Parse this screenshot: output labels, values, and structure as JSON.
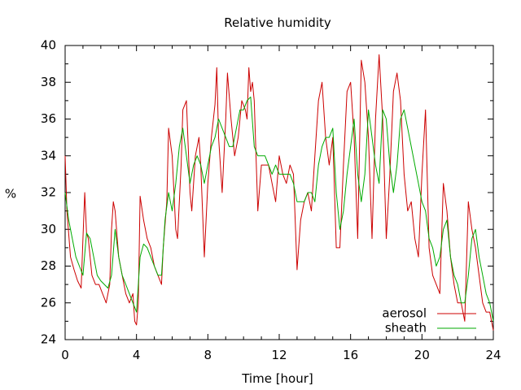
{
  "chart_data": {
    "type": "line",
    "title": "Relative humidity",
    "xlabel": "Time [hour]",
    "ylabel": "%",
    "xlim": [
      0,
      24
    ],
    "ylim": [
      24,
      40
    ],
    "x_ticks": [
      0,
      4,
      8,
      12,
      16,
      20,
      24
    ],
    "y_ticks": [
      24,
      26,
      28,
      30,
      32,
      34,
      36,
      38,
      40
    ],
    "grid": false,
    "legend_position": "bottom-right",
    "series": [
      {
        "name": "aerosol",
        "color": "#cc0000",
        "x": [
          0,
          0.1,
          0.3,
          0.5,
          0.7,
          0.9,
          1.0,
          1.1,
          1.2,
          1.3,
          1.5,
          1.7,
          1.9,
          2.1,
          2.3,
          2.5,
          2.6,
          2.7,
          2.8,
          3.0,
          3.2,
          3.4,
          3.6,
          3.8,
          3.9,
          4.0,
          4.1,
          4.2,
          4.4,
          4.6,
          4.8,
          5.0,
          5.2,
          5.4,
          5.5,
          5.7,
          5.8,
          6.0,
          6.2,
          6.3,
          6.5,
          6.6,
          6.8,
          7.0,
          7.1,
          7.3,
          7.5,
          7.6,
          7.8,
          8.0,
          8.2,
          8.4,
          8.5,
          8.6,
          8.8,
          9.0,
          9.1,
          9.3,
          9.5,
          9.7,
          9.9,
          10.1,
          10.2,
          10.3,
          10.4,
          10.5,
          10.6,
          10.8,
          11.0,
          11.2,
          11.4,
          11.6,
          11.8,
          12.0,
          12.2,
          12.4,
          12.6,
          12.8,
          13.0,
          13.2,
          13.4,
          13.6,
          13.8,
          14.0,
          14.2,
          14.4,
          14.6,
          14.8,
          15.0,
          15.2,
          15.4,
          15.6,
          15.8,
          16.0,
          16.2,
          16.4,
          16.6,
          16.8,
          17.0,
          17.2,
          17.4,
          17.6,
          17.8,
          18.0,
          18.2,
          18.4,
          18.6,
          18.8,
          19.0,
          19.2,
          19.4,
          19.6,
          19.8,
          20.0,
          20.2,
          20.4,
          20.6,
          20.8,
          21.0,
          21.2,
          21.4,
          21.6,
          21.8,
          22.0,
          22.2,
          22.4,
          22.6,
          22.8,
          23.0,
          23.2,
          23.4,
          23.6,
          23.8,
          24.0
        ],
        "values": [
          34.0,
          31.0,
          28.5,
          27.8,
          27.2,
          26.8,
          29.5,
          32.0,
          29.8,
          29.5,
          27.5,
          27.0,
          27.0,
          26.5,
          26.0,
          27.0,
          30.0,
          31.5,
          31.0,
          28.5,
          27.5,
          26.5,
          26.0,
          26.5,
          25.0,
          24.8,
          26.0,
          31.8,
          30.5,
          29.5,
          29.0,
          28.0,
          27.5,
          27.0,
          29.0,
          31.5,
          35.5,
          34.0,
          30.0,
          29.5,
          33.5,
          36.5,
          37.0,
          32.0,
          31.0,
          34.0,
          35.0,
          33.5,
          28.5,
          32.5,
          35.0,
          36.8,
          38.8,
          35.0,
          32.0,
          36.0,
          38.5,
          36.0,
          34.0,
          35.0,
          37.0,
          36.5,
          36.0,
          38.8,
          37.5,
          38.0,
          37.0,
          31.0,
          33.5,
          33.5,
          33.5,
          32.5,
          31.5,
          34.0,
          33.0,
          32.5,
          33.5,
          33.0,
          27.8,
          30.5,
          31.5,
          32.0,
          31.0,
          34.0,
          37.0,
          38.0,
          35.0,
          33.5,
          35.0,
          29.0,
          29.0,
          33.5,
          37.5,
          38.0,
          35.0,
          29.5,
          39.2,
          38.0,
          35.0,
          29.5,
          36.0,
          39.5,
          36.0,
          29.5,
          33.0,
          37.5,
          38.5,
          37.0,
          33.0,
          31.0,
          31.5,
          29.5,
          28.5,
          33.0,
          36.5,
          29.0,
          27.5,
          27.0,
          26.5,
          32.5,
          31.0,
          28.5,
          27.0,
          26.0,
          26.0,
          25.0,
          31.5,
          30.0,
          29.0,
          27.5,
          26.0,
          25.5,
          25.5,
          24.5
        ]
      },
      {
        "name": "sheath",
        "color": "#00aa00",
        "x": [
          0,
          0.2,
          0.4,
          0.6,
          0.8,
          1.0,
          1.2,
          1.4,
          1.6,
          1.8,
          2.0,
          2.2,
          2.4,
          2.6,
          2.8,
          3.0,
          3.2,
          3.4,
          3.6,
          3.8,
          4.0,
          4.2,
          4.4,
          4.6,
          4.8,
          5.0,
          5.2,
          5.4,
          5.6,
          5.8,
          6.0,
          6.2,
          6.4,
          6.6,
          6.8,
          7.0,
          7.2,
          7.4,
          7.6,
          7.8,
          8.0,
          8.2,
          8.4,
          8.6,
          8.8,
          9.0,
          9.2,
          9.4,
          9.6,
          9.8,
          10.0,
          10.2,
          10.4,
          10.6,
          10.8,
          11.0,
          11.2,
          11.4,
          11.6,
          11.8,
          12.0,
          12.2,
          12.4,
          12.6,
          12.8,
          13.0,
          13.2,
          13.4,
          13.6,
          13.8,
          14.0,
          14.2,
          14.4,
          14.6,
          14.8,
          15.0,
          15.2,
          15.4,
          15.6,
          15.8,
          16.0,
          16.2,
          16.4,
          16.6,
          16.8,
          17.0,
          17.2,
          17.4,
          17.6,
          17.8,
          18.0,
          18.2,
          18.4,
          18.6,
          18.8,
          19.0,
          19.2,
          19.4,
          19.6,
          19.8,
          20.0,
          20.2,
          20.4,
          20.6,
          20.8,
          21.0,
          21.2,
          21.4,
          21.6,
          21.8,
          22.0,
          22.2,
          22.4,
          22.6,
          22.8,
          23.0,
          23.2,
          23.4,
          23.6,
          23.8,
          24.0
        ],
        "values": [
          32.0,
          30.5,
          29.5,
          28.5,
          28.0,
          27.5,
          29.8,
          29.5,
          28.5,
          27.5,
          27.2,
          27.0,
          26.8,
          27.5,
          30.0,
          28.5,
          27.5,
          27.0,
          26.5,
          26.0,
          25.5,
          28.5,
          29.2,
          29.0,
          28.5,
          28.0,
          27.5,
          27.5,
          30.5,
          32.0,
          31.0,
          32.5,
          34.5,
          35.5,
          34.0,
          32.5,
          33.5,
          34.0,
          33.5,
          32.5,
          33.5,
          34.5,
          35.0,
          36.0,
          35.5,
          35.0,
          34.5,
          34.5,
          35.5,
          36.5,
          36.5,
          37.0,
          37.2,
          34.5,
          34.0,
          34.0,
          34.0,
          33.5,
          33.0,
          33.5,
          33.0,
          33.0,
          33.0,
          33.0,
          32.5,
          31.5,
          31.5,
          31.5,
          32.0,
          32.0,
          31.5,
          33.5,
          34.5,
          35.0,
          35.0,
          35.5,
          32.0,
          30.0,
          31.0,
          33.0,
          34.5,
          36.0,
          33.0,
          31.5,
          33.0,
          36.5,
          35.0,
          33.5,
          32.5,
          36.5,
          36.0,
          33.5,
          32.0,
          33.5,
          36.0,
          36.5,
          35.5,
          34.5,
          33.5,
          32.5,
          31.5,
          31.0,
          29.5,
          29.0,
          28.0,
          28.5,
          30.0,
          30.5,
          28.5,
          27.5,
          27.0,
          26.0,
          26.0,
          27.5,
          29.5,
          30.0,
          28.5,
          27.5,
          26.5,
          26.0,
          25.0
        ]
      }
    ]
  }
}
